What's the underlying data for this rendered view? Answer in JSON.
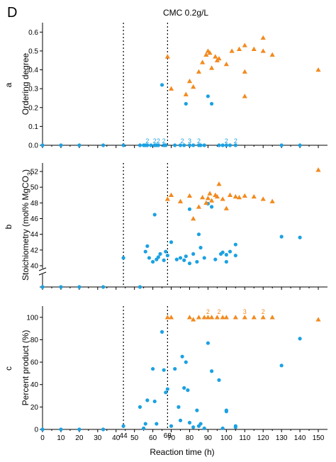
{
  "figure": {
    "label": "D",
    "title": "CMC 0.2g/L",
    "colors": {
      "circle": "#1BA1E2",
      "triangle": "#F28A1E"
    }
  },
  "chart_data": [
    {
      "type": "scatter",
      "panel": "a",
      "ylabel": "Ordering degree",
      "xlim": [
        0,
        155
      ],
      "ylim": [
        0,
        0.65
      ],
      "yticks": [
        "0.0",
        "0.1",
        "0.2",
        "0.3",
        "0.4",
        "0.5",
        "0.6"
      ],
      "vlines": [
        44,
        68
      ],
      "series": [
        {
          "marker": "circle",
          "color": "#1BA1E2",
          "points": [
            [
              0,
              0
            ],
            [
              10,
              0
            ],
            [
              20,
              0
            ],
            [
              33,
              0
            ],
            [
              44,
              0
            ],
            [
              53,
              0
            ],
            [
              55,
              0
            ],
            [
              56,
              0
            ],
            [
              57,
              0
            ],
            [
              59,
              0
            ],
            [
              61,
              0
            ],
            [
              62,
              0
            ],
            [
              63,
              0
            ],
            [
              65,
              0.32
            ],
            [
              66,
              0
            ],
            [
              67,
              0
            ],
            [
              72,
              0
            ],
            [
              75,
              0
            ],
            [
              77,
              0
            ],
            [
              78,
              0.22
            ],
            [
              80,
              0
            ],
            [
              82,
              0
            ],
            [
              85,
              0
            ],
            [
              86,
              0
            ],
            [
              88,
              0
            ],
            [
              90,
              0.26
            ],
            [
              92,
              0.22
            ],
            [
              96,
              0
            ],
            [
              98,
              0
            ],
            [
              100,
              0
            ],
            [
              102,
              0
            ],
            [
              105,
              0
            ],
            [
              130,
              0
            ],
            [
              140,
              0
            ]
          ]
        },
        {
          "marker": "triangle",
          "color": "#F28A1E",
          "points": [
            [
              68,
              0.47
            ],
            [
              70,
              0.3
            ],
            [
              78,
              0.27
            ],
            [
              80,
              0.34
            ],
            [
              82,
              0.31
            ],
            [
              85,
              0.39
            ],
            [
              87,
              0.44
            ],
            [
              89,
              0.48
            ],
            [
              90,
              0.5
            ],
            [
              91,
              0.49
            ],
            [
              92,
              0.41
            ],
            [
              94,
              0.47
            ],
            [
              95,
              0.45
            ],
            [
              96,
              0.46
            ],
            [
              100,
              0.43
            ],
            [
              103,
              0.5
            ],
            [
              107,
              0.51
            ],
            [
              110,
              0.53
            ],
            [
              110,
              0.39
            ],
            [
              110,
              0.26
            ],
            [
              115,
              0.51
            ],
            [
              120,
              0.57
            ],
            [
              120,
              0.5
            ],
            [
              125,
              0.48
            ],
            [
              150,
              0.4
            ]
          ]
        }
      ],
      "annotations": [
        {
          "x": 57,
          "text": "2"
        },
        {
          "x": 61,
          "text": "2"
        },
        {
          "x": 63,
          "text": "2"
        },
        {
          "x": 66,
          "text": "2"
        },
        {
          "x": 76,
          "text": "2"
        },
        {
          "x": 80,
          "text": "3"
        },
        {
          "x": 85,
          "text": "2"
        },
        {
          "x": 100,
          "text": "2"
        },
        {
          "x": 105,
          "text": "2"
        }
      ]
    },
    {
      "type": "scatter",
      "panel": "b",
      "ylabel": "Stoichiometry (mol% MgCO3)",
      "xlim": [
        0,
        155
      ],
      "ylim": [
        39,
        53
      ],
      "axis_break": true,
      "yticks": [
        "40",
        "42",
        "44",
        "46",
        "48",
        "50",
        "52"
      ],
      "vlines": [
        44,
        68
      ],
      "series": [
        {
          "marker": "circle",
          "color": "#1BA1E2",
          "points": [
            [
              44,
              41.0
            ],
            [
              56,
              41.8
            ],
            [
              57,
              42.5
            ],
            [
              58,
              41.0
            ],
            [
              60,
              40.5
            ],
            [
              61,
              46.5
            ],
            [
              62,
              40.8
            ],
            [
              63,
              41.1
            ],
            [
              64,
              41.5
            ],
            [
              66,
              40.7
            ],
            [
              67,
              41.8
            ],
            [
              68,
              41.3
            ],
            [
              70,
              43.0
            ],
            [
              73,
              40.8
            ],
            [
              75,
              41.0
            ],
            [
              77,
              40.7
            ],
            [
              78,
              41.2
            ],
            [
              80,
              40.3
            ],
            [
              80,
              47.2
            ],
            [
              82,
              41.5
            ],
            [
              84,
              40.5
            ],
            [
              85,
              44.0
            ],
            [
              86,
              42.3
            ],
            [
              88,
              41.0
            ],
            [
              90,
              47.9
            ],
            [
              92,
              47.5
            ],
            [
              94,
              40.8
            ],
            [
              97,
              41.5
            ],
            [
              98,
              41.7
            ],
            [
              100,
              40.5
            ],
            [
              100,
              41.4
            ],
            [
              102,
              41.8
            ],
            [
              105,
              42.7
            ],
            [
              105,
              41.3
            ],
            [
              130,
              43.7
            ],
            [
              140,
              43.6
            ],
            [
              0,
              38.5
            ],
            [
              10,
              38.5
            ],
            [
              20,
              38.5
            ],
            [
              33,
              38.5
            ],
            [
              53,
              38.5
            ]
          ]
        },
        {
          "marker": "triangle",
          "color": "#F28A1E",
          "points": [
            [
              68,
              48.5
            ],
            [
              70,
              49.0
            ],
            [
              75,
              48.2
            ],
            [
              80,
              48.9
            ],
            [
              82,
              46.0
            ],
            [
              85,
              47.5
            ],
            [
              87,
              48.7
            ],
            [
              89,
              48.0
            ],
            [
              90,
              48.6
            ],
            [
              91,
              49.2
            ],
            [
              92,
              48.3
            ],
            [
              94,
              49.0
            ],
            [
              95,
              48.8
            ],
            [
              96,
              50.4
            ],
            [
              98,
              48.5
            ],
            [
              100,
              47.3
            ],
            [
              102,
              49.0
            ],
            [
              105,
              48.8
            ],
            [
              107,
              48.7
            ],
            [
              110,
              48.9
            ],
            [
              115,
              48.8
            ],
            [
              120,
              48.5
            ],
            [
              125,
              48.2
            ],
            [
              150,
              52.2
            ]
          ]
        }
      ]
    },
    {
      "type": "scatter",
      "panel": "c",
      "ylabel": "Percent product (%)",
      "xlabel": "Reaction time (h)",
      "xlim": [
        0,
        155
      ],
      "ylim": [
        0,
        110
      ],
      "xticks": [
        "0",
        "10",
        "20",
        "30",
        "40",
        "50",
        "60",
        "70",
        "80",
        "90",
        "100",
        "110",
        "120",
        "130",
        "140",
        "150"
      ],
      "yticks": [
        "0",
        "20",
        "40",
        "60",
        "80",
        "100"
      ],
      "vlines": [
        44,
        68
      ],
      "vline_labels": [
        "44",
        "68"
      ],
      "series": [
        {
          "marker": "circle",
          "color": "#1BA1E2",
          "points": [
            [
              0,
              0
            ],
            [
              10,
              0
            ],
            [
              20,
              0
            ],
            [
              33,
              0
            ],
            [
              44,
              3
            ],
            [
              53,
              20
            ],
            [
              55,
              1
            ],
            [
              56,
              5
            ],
            [
              57,
              26
            ],
            [
              60,
              54
            ],
            [
              61,
              25
            ],
            [
              62,
              5
            ],
            [
              65,
              87
            ],
            [
              66,
              53
            ],
            [
              67,
              33
            ],
            [
              68,
              36
            ],
            [
              70,
              3
            ],
            [
              72,
              54
            ],
            [
              74,
              20
            ],
            [
              75,
              8
            ],
            [
              76,
              65
            ],
            [
              77,
              37
            ],
            [
              78,
              60
            ],
            [
              79,
              35
            ],
            [
              80,
              6
            ],
            [
              82,
              2
            ],
            [
              84,
              17
            ],
            [
              85,
              3
            ],
            [
              86,
              5
            ],
            [
              88,
              1
            ],
            [
              90,
              77
            ],
            [
              92,
              52
            ],
            [
              96,
              44
            ],
            [
              98,
              1
            ],
            [
              100,
              16
            ],
            [
              100,
              17
            ],
            [
              105,
              3
            ],
            [
              105,
              2
            ],
            [
              130,
              57
            ],
            [
              140,
              81
            ]
          ]
        },
        {
          "marker": "triangle",
          "color": "#F28A1E",
          "points": [
            [
              68,
              100
            ],
            [
              70,
              100
            ],
            [
              80,
              100
            ],
            [
              82,
              98
            ],
            [
              85,
              100
            ],
            [
              88,
              100
            ],
            [
              90,
              100
            ],
            [
              92,
              100
            ],
            [
              95,
              100
            ],
            [
              98,
              100
            ],
            [
              100,
              100
            ],
            [
              105,
              100
            ],
            [
              110,
              100
            ],
            [
              115,
              100
            ],
            [
              120,
              100
            ],
            [
              125,
              100
            ],
            [
              150,
              98
            ]
          ]
        }
      ],
      "annotations": [
        {
          "x": 90,
          "text": "2"
        },
        {
          "x": 96,
          "text": "2"
        },
        {
          "x": 110,
          "text": "3"
        },
        {
          "x": 120,
          "text": "2"
        }
      ]
    }
  ]
}
